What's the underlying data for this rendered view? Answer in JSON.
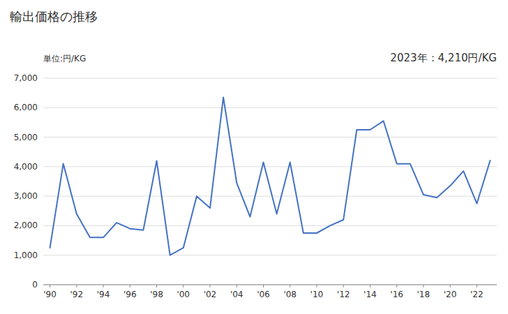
{
  "chart_data": {
    "type": "line",
    "title": "輸出価格の推移",
    "y_label": "単位:円/KG",
    "annotation": "2023年：4,210円/KG",
    "x": [
      1990,
      1991,
      1992,
      1993,
      1994,
      1995,
      1996,
      1997,
      1998,
      1999,
      2000,
      2001,
      2002,
      2003,
      2004,
      2005,
      2006,
      2007,
      2008,
      2009,
      2010,
      2011,
      2012,
      2013,
      2014,
      2015,
      2016,
      2017,
      2018,
      2019,
      2020,
      2021,
      2022,
      2023
    ],
    "values": [
      1250,
      4100,
      2400,
      1600,
      1600,
      2100,
      1900,
      1850,
      4200,
      1000,
      1250,
      3000,
      2600,
      6350,
      3450,
      2300,
      4150,
      2400,
      4150,
      1750,
      1750,
      2000,
      2200,
      5250,
      5250,
      5550,
      4100,
      4100,
      3050,
      2950,
      3350,
      3850,
      2750,
      4210
    ],
    "color": "#4472C4",
    "xlim": [
      1989.5,
      2023.5
    ],
    "xticks": [
      {
        "value": 1990,
        "label": "'90"
      },
      {
        "value": 1992,
        "label": "'92"
      },
      {
        "value": 1994,
        "label": "'94"
      },
      {
        "value": 1996,
        "label": "'96"
      },
      {
        "value": 1998,
        "label": "'98"
      },
      {
        "value": 2000,
        "label": "'00"
      },
      {
        "value": 2002,
        "label": "'02"
      },
      {
        "value": 2004,
        "label": "'04"
      },
      {
        "value": 2006,
        "label": "'06"
      },
      {
        "value": 2008,
        "label": "'08"
      },
      {
        "value": 2010,
        "label": "'10"
      },
      {
        "value": 2012,
        "label": "'12"
      },
      {
        "value": 2014,
        "label": "'14"
      },
      {
        "value": 2016,
        "label": "'16"
      },
      {
        "value": 2018,
        "label": "'18"
      },
      {
        "value": 2020,
        "label": "'20"
      },
      {
        "value": 2022,
        "label": "'22"
      }
    ],
    "ylim": [
      0,
      7000
    ],
    "yticks": [
      0,
      {
        "value": 1000,
        "label": "1,000"
      },
      {
        "value": 2000,
        "label": "2,000"
      },
      {
        "value": 3000,
        "label": "3,000"
      },
      {
        "value": 4000,
        "label": "4,000"
      },
      {
        "value": 5000,
        "label": "5,000"
      },
      {
        "value": 6000,
        "label": "6,000"
      },
      {
        "value": 7000,
        "label": "7,000"
      }
    ],
    "grid": true
  }
}
